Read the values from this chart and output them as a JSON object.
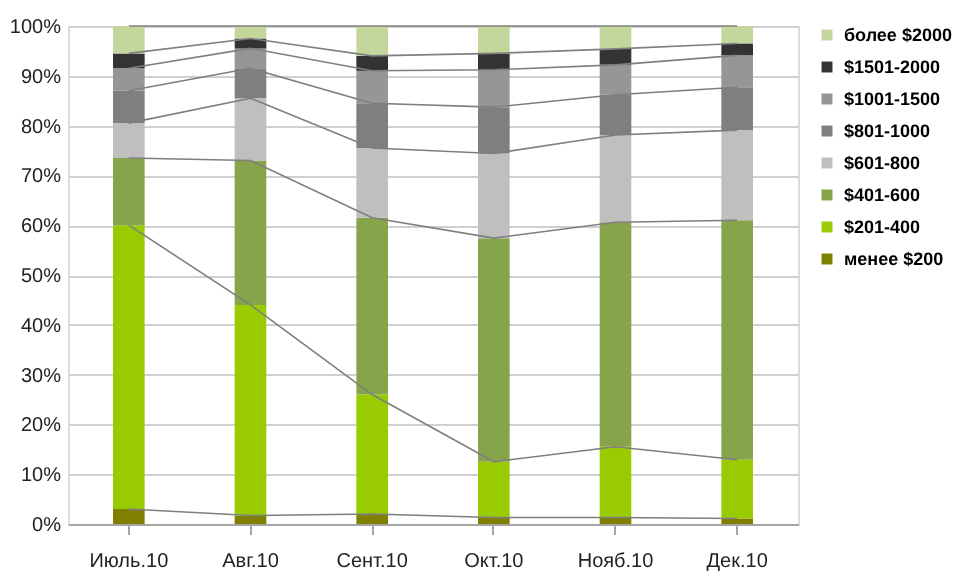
{
  "chart_data": {
    "type": "bar",
    "stacked": true,
    "categories": [
      "Июль.10",
      "Авг.10",
      "Сент.10",
      "Окт.10",
      "Нояб.10",
      "Дек.10"
    ],
    "series": [
      {
        "name": "менее $200",
        "color": "#7f7f00",
        "values": [
          3,
          1.7,
          2,
          1.3,
          1.3,
          1.1
        ]
      },
      {
        "name": "$201-400",
        "color": "#99cc00",
        "values": [
          57,
          42.3,
          24,
          11.2,
          14.2,
          11.8
        ]
      },
      {
        "name": "$401-600",
        "color": "#86a44a",
        "values": [
          13.5,
          29,
          35.5,
          44.9,
          45.1,
          48.1
        ]
      },
      {
        "name": "$601-800",
        "color": "#bfbfbf",
        "values": [
          7,
          12.5,
          14,
          17,
          17.5,
          18.1
        ]
      },
      {
        "name": "$801-1000",
        "color": "#7f7f7f",
        "values": [
          6.5,
          6,
          9,
          9.3,
          8.1,
          8.6
        ]
      },
      {
        "name": "$1001-1500",
        "color": "#969696",
        "values": [
          4.5,
          4,
          6.5,
          7.5,
          6,
          6.4
        ]
      },
      {
        "name": "$1501-2000",
        "color": "#333333",
        "values": [
          3,
          2,
          3,
          3.3,
          3.2,
          2.4
        ]
      },
      {
        "name": "более $2000",
        "color": "#c3d69b",
        "values": [
          5.5,
          2.5,
          6,
          5.5,
          4.6,
          3.5
        ]
      }
    ],
    "ylim": [
      0,
      100
    ],
    "yticks": [
      {
        "value": 0,
        "label": "0%"
      },
      {
        "value": 10,
        "label": "10%"
      },
      {
        "value": 20,
        "label": "20%"
      },
      {
        "value": 30,
        "label": "30%"
      },
      {
        "value": 40,
        "label": "40%"
      },
      {
        "value": 50,
        "label": "50%"
      },
      {
        "value": 60,
        "label": "60%"
      },
      {
        "value": 70,
        "label": "70%"
      },
      {
        "value": 80,
        "label": "80%"
      },
      {
        "value": 90,
        "label": "90%"
      },
      {
        "value": 100,
        "label": "100%"
      }
    ],
    "grid": "y",
    "legend": "right"
  }
}
